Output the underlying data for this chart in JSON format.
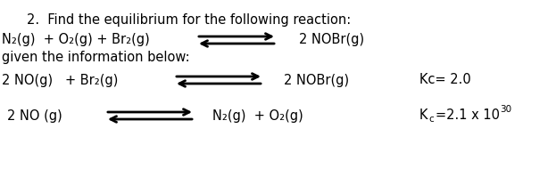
{
  "background_color": "#ffffff",
  "title_line": "2.  Find the equilibrium for the following reaction:",
  "reaction_line": "N₂(g)  + O₂(g) + Br₂(g)",
  "reaction_product": "2 NOBr(g)",
  "given_line": "given the information below:",
  "eq1_left": "2 NO(g)   + Br₂(g)",
  "eq1_right": "2 NOBr(g)",
  "eq1_kc": "Kc= 2.0",
  "eq2_left": "2 NO (g)",
  "eq2_right": "N₂(g)  + O₂(g)",
  "eq2_kc_exp": "30",
  "fontsize": 10.5,
  "fontsize_small": 7.5,
  "figsize": [
    6.23,
    2.08
  ],
  "dpi": 100
}
